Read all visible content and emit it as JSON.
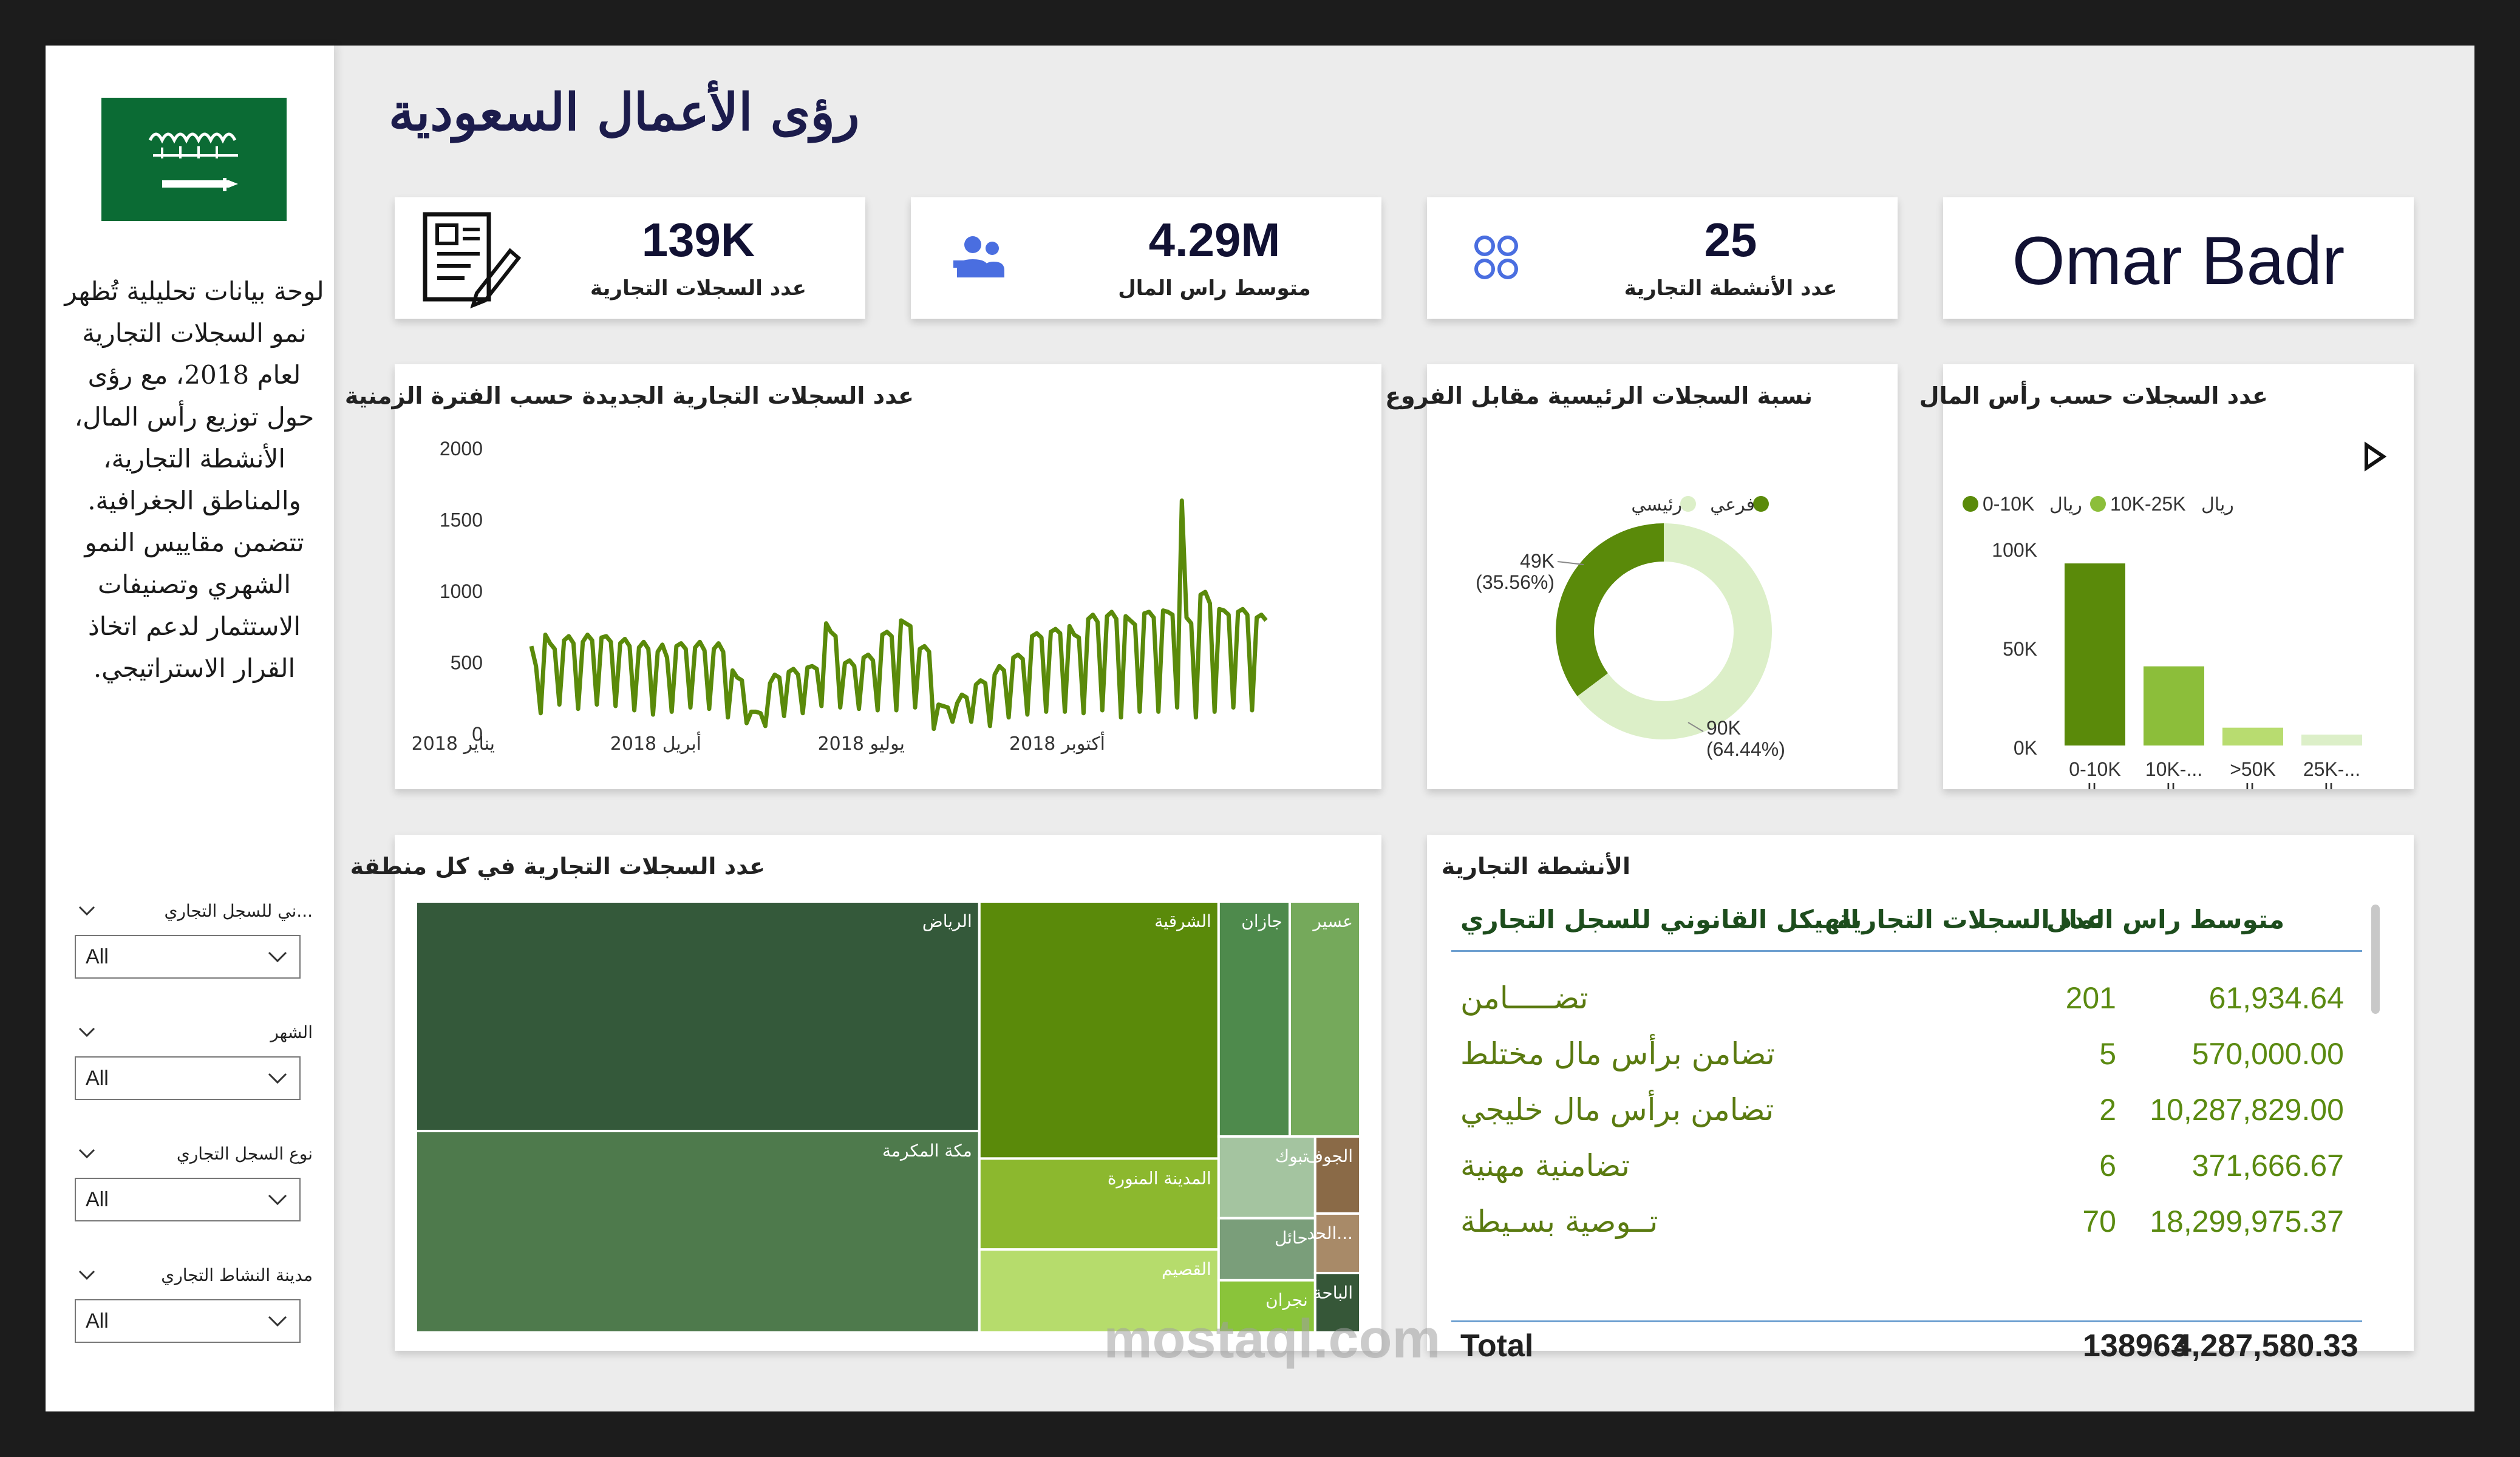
{
  "title": "رؤى الأعمال السعودية",
  "sidebar": {
    "flag_icon": "saudi-flag-icon",
    "description": "لوحة بيانات تحليلية تُظهر نمو السجلات التجارية لعام 2018، مع رؤى حول توزيع رأس المال، الأنشطة التجارية، والمناطق الجغرافية. تتضمن مقاييس النمو الشهري وتصنيفات الاستثمار لدعم اتخاذ القرار الاستراتيجي.",
    "slicers": [
      {
        "label": "...ني للسجل التجاري",
        "value": "All"
      },
      {
        "label": "الشهر",
        "value": "All"
      },
      {
        "label": "نوع السجل التجاري",
        "value": "All"
      },
      {
        "label": "مدينة النشاط التجاري",
        "value": "All"
      }
    ]
  },
  "kpis": [
    {
      "value": "139K",
      "label": "عدد السجلات التجارية",
      "icon": "document-pen-icon"
    },
    {
      "value": "4.29M",
      "label": "متوسط راس المال",
      "icon": "people-icon"
    },
    {
      "value": "25",
      "label": "عدد الأنشطة التجارية",
      "icon": "grid-circles-icon"
    }
  ],
  "author": "Omar Badr",
  "colors": {
    "dark_green": "#5a8a0a",
    "light_green": "#dcefc8",
    "navy": "#1c1c4c"
  },
  "chart_data": [
    {
      "type": "line",
      "title": "عدد السجلات التجارية الجديدة حسب الفترة الزمنية",
      "x_ticks": [
        "يناير 2018",
        "أبريل 2018",
        "يوليو 2018",
        "أكتوبر 2018"
      ],
      "y_ticks": [
        "2000",
        "1500",
        "1000",
        "500",
        "0"
      ],
      "ylim": [
        0,
        2000
      ],
      "x_range": [
        "2018-01-01",
        "2018-12-31"
      ],
      "series": [
        {
          "values": [
            620,
            480,
            150,
            700,
            640,
            600,
            210,
            660,
            690,
            640,
            180,
            650,
            700,
            660,
            210,
            680,
            690,
            650,
            200,
            640,
            670,
            620,
            170,
            610,
            650,
            600,
            140,
            580,
            630,
            540,
            160,
            620,
            640,
            600,
            190,
            610,
            650,
            590,
            180,
            600,
            640,
            580,
            120,
            450,
            400,
            380,
            80,
            160,
            160,
            150,
            60,
            360,
            420,
            400,
            130,
            440,
            460,
            420,
            150,
            470,
            480,
            460,
            200,
            780,
            720,
            690,
            190,
            500,
            520,
            480,
            180,
            540,
            560,
            520,
            170,
            700,
            720,
            690,
            170,
            800,
            780,
            760,
            190,
            600,
            620,
            580,
            40,
            210,
            200,
            190,
            90,
            220,
            280,
            260,
            90,
            350,
            380,
            360,
            60,
            420,
            480,
            450,
            120,
            540,
            560,
            530,
            140,
            690,
            710,
            680,
            160,
            720,
            740,
            710,
            160,
            760,
            700,
            680,
            150,
            810,
            840,
            790,
            170,
            830,
            860,
            810,
            120,
            830,
            800,
            770,
            160,
            850,
            860,
            820,
            160,
            870,
            860,
            840,
            190,
            1640,
            820,
            780,
            120,
            980,
            1000,
            920,
            160,
            880,
            870,
            840,
            190,
            860,
            880,
            840,
            170,
            820,
            840,
            800
          ]
        }
      ]
    },
    {
      "type": "pie",
      "title": "نسبة السجلات الرئيسية مقابل الفروع",
      "legend": [
        "رئيسي",
        "فرعي"
      ],
      "slices": [
        {
          "name": "فرعي",
          "value": 49000,
          "label": "49K",
          "pct": "(35.56%)"
        },
        {
          "name": "رئيسي",
          "value": 90000,
          "label": "90K",
          "pct": "(64.44%)"
        }
      ]
    },
    {
      "type": "bar",
      "title": "عدد السجلات حسب رأس المال",
      "legend": [
        {
          "label": "0-10K",
          "unit": "ريال"
        },
        {
          "label": "10K-25K",
          "unit": "ريال"
        }
      ],
      "categories": [
        "0-10K",
        "10K-...",
        ">50K",
        "25K-..."
      ],
      "category_unit": "ريال",
      "values": [
        92000,
        40000,
        9000,
        5500
      ],
      "y_ticks": [
        "100K",
        "50K",
        "0K"
      ],
      "ylim": [
        0,
        100000
      ]
    },
    {
      "type": "treemap",
      "title": "عدد السجلات التجارية في كل منطقة",
      "regions": [
        {
          "name": "الرياض",
          "value": 41000,
          "color": "#34593a"
        },
        {
          "name": "مكة المكرمة",
          "value": 36000,
          "color": "#4e7a4c"
        },
        {
          "name": "الشرقية",
          "value": 19500,
          "color": "#5a8a0a"
        },
        {
          "name": "المدينة المنورة",
          "value": 6900,
          "color": "#8cb82e"
        },
        {
          "name": "القصيم",
          "value": 6300,
          "color": "#b6dc6c"
        },
        {
          "name": "جازان",
          "value": 5300,
          "color": "#4e8a4c"
        },
        {
          "name": "عسير",
          "value": 5250,
          "color": "#75a95b"
        },
        {
          "name": "تبوك",
          "value": 2500,
          "color": "#a4c4a0"
        },
        {
          "name": "حائل",
          "value": 1900,
          "color": "#7a9e7a"
        },
        {
          "name": "نجران",
          "value": 1600,
          "color": "#8ac43a"
        },
        {
          "name": "الجوف",
          "value": 1100,
          "color": "#8a6a47"
        },
        {
          "name": "الحد...",
          "value": 850,
          "color": "#a88a68"
        },
        {
          "name": "الباحة",
          "value": 850,
          "color": "#365738"
        }
      ]
    },
    {
      "type": "table",
      "title": "الأنشطة التجارية",
      "columns": [
        "الهيكل القانوني للسجل التجاري",
        "عدد السجلات التجارية",
        "متوسط راس المال"
      ],
      "rows": [
        [
          "تضـــــامن",
          "201",
          "61,934.64"
        ],
        [
          "تضامن برأس مال مختلط",
          "5",
          "570,000.00"
        ],
        [
          "تضامن برأس مال خليجي",
          "2",
          "10,287,829.00"
        ],
        [
          "تضامنية مهنية",
          "6",
          "371,666.67"
        ],
        [
          "تــوصية بسـيطة",
          "70",
          "18,299,975.37"
        ]
      ],
      "total": [
        "Total",
        "138963",
        "4,287,580.33"
      ]
    }
  ]
}
